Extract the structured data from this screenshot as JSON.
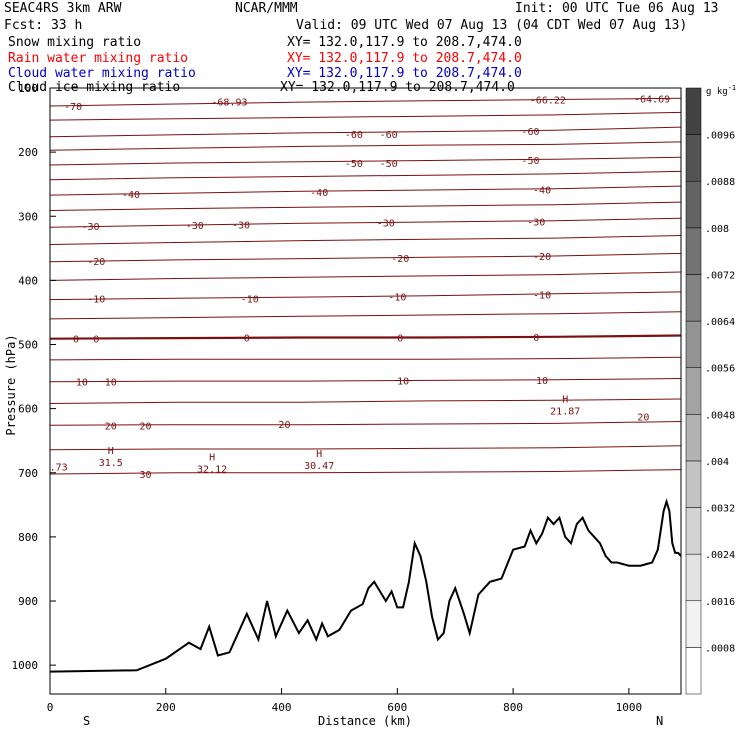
{
  "header": {
    "model": "SEAC4RS  3km ARW",
    "org": "NCAR/MMM",
    "init": "Init: 00 UTC Tue 06 Aug 13",
    "fcst": "Fcst:   33 h",
    "valid": "Valid: 09 UTC Wed 07 Aug 13 (04 CDT Wed 07 Aug 13)",
    "fields": [
      {
        "name": "Snow mixing ratio",
        "xy": "XY= 132.0,117.9 to 208.7,474.0",
        "color": "#000000"
      },
      {
        "name": "Rain water mixing ratio",
        "xy": "XY= 132.0,117.9 to 208.7,474.0",
        "color": "#ff0000"
      },
      {
        "name": "Cloud water mixing ratio",
        "xy": "XY= 132.0,117.9 to 208.7,474.0",
        "color": "#0000cc"
      },
      {
        "name": "Cloud ice mixing ratio",
        "xy": "XY= 132.0,117.9 to 208.7,474.0",
        "color": "#000000"
      }
    ]
  },
  "chart_data": {
    "type": "line",
    "xlabel": "Distance (km)",
    "ylabel": "Pressure (hPa)",
    "xlim": [
      0,
      1090
    ],
    "ylim": [
      1045,
      100
    ],
    "x_ticks": [
      "0",
      "200",
      "400",
      "600",
      "800",
      "1000"
    ],
    "y_ticks": [
      "100",
      "200",
      "300",
      "400",
      "500",
      "600",
      "700",
      "800",
      "900",
      "1000"
    ],
    "x_end_labels": {
      "left": "S",
      "right": "N"
    },
    "contour_color": "#7a1010",
    "terrain_color": "#000000",
    "temperature_isotherms_c": [
      {
        "value": -70,
        "p": [
          128,
          125,
          122,
          120,
          118,
          116
        ]
      },
      {
        "value": -65,
        "p": [
          150,
          148,
          146,
          144,
          142,
          138
        ]
      },
      {
        "value": -60,
        "p": [
          176,
          173,
          170,
          168,
          166,
          161
        ]
      },
      {
        "value": -55,
        "p": [
          197,
          194,
          191,
          189,
          188,
          184
        ]
      },
      {
        "value": -50,
        "p": [
          220,
          217,
          215,
          213,
          211,
          208
        ]
      },
      {
        "value": -45,
        "p": [
          243,
          240,
          238,
          236,
          234,
          230
        ]
      },
      {
        "value": -40,
        "p": [
          267,
          264,
          261,
          259,
          257,
          253
        ]
      },
      {
        "value": -35,
        "p": [
          291,
          288,
          286,
          284,
          282,
          278
        ]
      },
      {
        "value": -30,
        "p": [
          317,
          314,
          311,
          309,
          307,
          303
        ]
      },
      {
        "value": -25,
        "p": [
          344,
          341,
          338,
          336,
          334,
          330
        ]
      },
      {
        "value": -20,
        "p": [
          371,
          368,
          366,
          364,
          362,
          358
        ]
      },
      {
        "value": -15,
        "p": [
          400,
          397,
          395,
          393,
          391,
          387
        ]
      },
      {
        "value": -10,
        "p": [
          430,
          428,
          426,
          424,
          421,
          418
        ]
      },
      {
        "value": -5,
        "p": [
          460,
          458,
          456,
          454,
          452,
          449
        ]
      },
      {
        "value": 0,
        "p": [
          491,
          490,
          489,
          489,
          488,
          486
        ]
      },
      {
        "value": 5,
        "p": [
          524,
          523,
          523,
          523,
          522,
          520
        ]
      },
      {
        "value": 10,
        "p": [
          558,
          557,
          557,
          556,
          555,
          553
        ]
      },
      {
        "value": 15,
        "p": [
          592,
          590,
          590,
          588,
          587,
          585
        ]
      },
      {
        "value": 20,
        "p": [
          626,
          625,
          625,
          624,
          623,
          620
        ]
      },
      {
        "value": 25,
        "p": [
          664,
          663,
          663,
          662,
          661,
          658
        ]
      },
      {
        "value": 30,
        "p": [
          702,
          700,
          700,
          699,
          698,
          695
        ]
      }
    ],
    "contour_labels": [
      {
        "text": "-70",
        "x": 40,
        "p": 128
      },
      {
        "text": "-68.93",
        "x": 310,
        "p": 121
      },
      {
        "text": "-66.22",
        "x": 860,
        "p": 118
      },
      {
        "text": "-64.69",
        "x": 1040,
        "p": 116
      },
      {
        "text": "-60",
        "x": 525,
        "p": 172
      },
      {
        "text": "-60",
        "x": 585,
        "p": 172
      },
      {
        "text": "-60",
        "x": 830,
        "p": 167
      },
      {
        "text": "-50",
        "x": 525,
        "p": 217
      },
      {
        "text": "-50",
        "x": 585,
        "p": 217
      },
      {
        "text": "-50",
        "x": 830,
        "p": 212
      },
      {
        "text": "-40",
        "x": 140,
        "p": 265
      },
      {
        "text": "-40",
        "x": 465,
        "p": 262
      },
      {
        "text": "-40",
        "x": 850,
        "p": 258
      },
      {
        "text": "-30",
        "x": 70,
        "p": 315
      },
      {
        "text": "-30",
        "x": 250,
        "p": 314
      },
      {
        "text": "-30",
        "x": 330,
        "p": 313
      },
      {
        "text": "-30",
        "x": 580,
        "p": 310
      },
      {
        "text": "-30",
        "x": 840,
        "p": 308
      },
      {
        "text": "-20",
        "x": 80,
        "p": 370
      },
      {
        "text": "-20",
        "x": 605,
        "p": 365
      },
      {
        "text": "-20",
        "x": 850,
        "p": 362
      },
      {
        "text": "-10",
        "x": 80,
        "p": 428
      },
      {
        "text": "-10",
        "x": 345,
        "p": 428
      },
      {
        "text": "-10",
        "x": 600,
        "p": 425
      },
      {
        "text": "-10",
        "x": 850,
        "p": 422
      },
      {
        "text": "0",
        "x": 45,
        "p": 491
      },
      {
        "text": "0",
        "x": 80,
        "p": 491
      },
      {
        "text": "0",
        "x": 340,
        "p": 489
      },
      {
        "text": "0",
        "x": 605,
        "p": 489
      },
      {
        "text": "0",
        "x": 840,
        "p": 488
      },
      {
        "text": "10",
        "x": 55,
        "p": 558
      },
      {
        "text": "10",
        "x": 105,
        "p": 558
      },
      {
        "text": "10",
        "x": 610,
        "p": 556
      },
      {
        "text": "10",
        "x": 850,
        "p": 555
      },
      {
        "text": "20",
        "x": 105,
        "p": 626
      },
      {
        "text": "20",
        "x": 165,
        "p": 626
      },
      {
        "text": "20",
        "x": 405,
        "p": 624
      },
      {
        "text": "20",
        "x": 1025,
        "p": 612
      },
      {
        "text": "30",
        "x": 165,
        "p": 702
      },
      {
        "text": ".73",
        "x": 15,
        "p": 690
      }
    ],
    "extrema_labels": [
      {
        "mark": "H",
        "value": "31.5",
        "x": 105,
        "p": 680
      },
      {
        "mark": "H",
        "value": "32.12",
        "x": 280,
        "p": 690
      },
      {
        "mark": "H",
        "value": "30.47",
        "x": 465,
        "p": 685
      },
      {
        "mark": "H",
        "value": "21.87",
        "x": 890,
        "p": 600
      }
    ],
    "terrain": {
      "x": [
        0,
        150,
        200,
        240,
        260,
        275,
        290,
        310,
        340,
        360,
        375,
        390,
        410,
        430,
        445,
        460,
        470,
        480,
        500,
        520,
        540,
        550,
        560,
        570,
        580,
        590,
        600,
        610,
        620,
        630,
        640,
        650,
        660,
        670,
        680,
        690,
        700,
        715,
        725,
        740,
        760,
        780,
        800,
        820,
        830,
        840,
        850,
        860,
        870,
        880,
        890,
        900,
        910,
        920,
        930,
        940,
        950,
        960,
        970,
        980,
        1000,
        1020,
        1040,
        1050,
        1060,
        1065,
        1070,
        1075,
        1080,
        1085,
        1090
      ],
      "p": [
        1010,
        1008,
        990,
        965,
        975,
        940,
        985,
        980,
        920,
        960,
        900,
        955,
        915,
        950,
        930,
        960,
        935,
        955,
        945,
        915,
        905,
        880,
        870,
        885,
        900,
        885,
        910,
        910,
        870,
        810,
        830,
        870,
        925,
        960,
        950,
        900,
        880,
        920,
        950,
        890,
        870,
        865,
        820,
        815,
        790,
        810,
        795,
        770,
        780,
        770,
        800,
        810,
        780,
        770,
        790,
        800,
        810,
        830,
        840,
        840,
        845,
        845,
        840,
        820,
        760,
        745,
        760,
        810,
        825,
        825,
        830
      ]
    },
    "legend": {
      "unit": "g kg",
      "unit_superscript": "-1",
      "levels": [
        ".0008",
        ".0016",
        ".0024",
        ".0032",
        ".004",
        ".0048",
        ".0056",
        ".0064",
        ".0072",
        ".008",
        ".0088",
        ".0096"
      ],
      "colors": [
        "#ffffff",
        "#f2f2f2",
        "#e3e3e3",
        "#d3d3d3",
        "#c3c3c3",
        "#b3b3b3",
        "#a3a3a3",
        "#939393",
        "#838383",
        "#737373",
        "#636363",
        "#535353",
        "#434343"
      ]
    }
  }
}
